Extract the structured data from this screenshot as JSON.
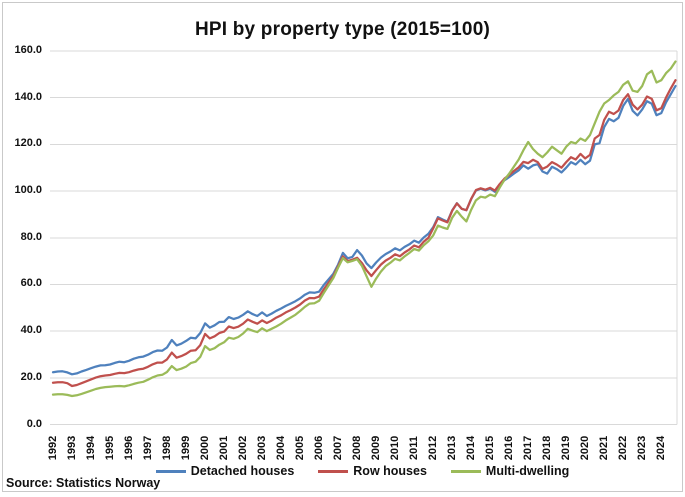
{
  "title": "HPI by property type (2015=100)",
  "source": "Source: Statistics Norway",
  "colors": {
    "detached": "#4F81BD",
    "row": "#C0504D",
    "multi": "#9BBB59",
    "gridline": "#d9d9d9"
  },
  "chart_data": {
    "type": "line",
    "title": "HPI by property type (2015=100)",
    "x_unit": "quarter",
    "x_start": "1992 Q1",
    "x_end": "2024 Q4",
    "x_labels_every": 4,
    "year_labels": [
      "1992",
      "1993",
      "1994",
      "1995",
      "1996",
      "1997",
      "1998",
      "1999",
      "2000",
      "2001",
      "2002",
      "2003",
      "2004",
      "2005",
      "2006",
      "2007",
      "2008",
      "2009",
      "2010",
      "2011",
      "2012",
      "2013",
      "2014",
      "2015",
      "2016",
      "2017",
      "2018",
      "2019",
      "2020",
      "2021",
      "2022",
      "2023",
      "2024"
    ],
    "y_ticks": [
      "0.0",
      "20.0",
      "40.0",
      "60.0",
      "80.0",
      "100.0",
      "120.0",
      "140.0",
      "160.0"
    ],
    "ylim": [
      0,
      160
    ],
    "grid": "horizontal",
    "legend_position": "bottom",
    "series": [
      {
        "name": "Detached houses",
        "color": "#4F81BD",
        "values": [
          22.4,
          22.7,
          22.8,
          22.3,
          21.5,
          21.9,
          22.7,
          23.4,
          24.1,
          24.8,
          25.3,
          25.4,
          25.7,
          26.4,
          26.9,
          26.7,
          27.3,
          28.2,
          28.8,
          29.1,
          29.9,
          31.0,
          31.7,
          31.6,
          33.0,
          36.2,
          33.9,
          34.6,
          35.8,
          37.2,
          36.9,
          39.2,
          43.3,
          41.5,
          42.5,
          43.9,
          44.0,
          46.0,
          45.2,
          45.8,
          47.0,
          48.5,
          47.3,
          46.5,
          48.0,
          46.5,
          47.5,
          48.7,
          49.7,
          50.8,
          51.8,
          52.8,
          54.0,
          55.6,
          56.6,
          56.4,
          56.9,
          59.8,
          62.2,
          64.6,
          68.5,
          73.5,
          71.2,
          71.8,
          74.7,
          72.4,
          69.0,
          67.0,
          69.4,
          71.5,
          73.0,
          74.1,
          75.5,
          74.6,
          76.1,
          77.2,
          78.8,
          77.9,
          80.1,
          81.7,
          84.5,
          88.8,
          87.8,
          86.9,
          91.7,
          94.8,
          92.4,
          91.8,
          96.6,
          100.2,
          101.0,
          100.3,
          101.0,
          99.7,
          102.4,
          104.6,
          106.0,
          107.5,
          108.9,
          111.0,
          109.6,
          111.0,
          111.5,
          108.4,
          107.5,
          110.4,
          109.4,
          108.0,
          110.0,
          112.4,
          111.4,
          113.4,
          111.5,
          113.0,
          120.0,
          120.5,
          127.4,
          130.9,
          129.9,
          131.4,
          136.5,
          139.5,
          134.4,
          132.4,
          135.0,
          138.5,
          137.4,
          132.5,
          133.4,
          138.0,
          141.5,
          145.0
        ]
      },
      {
        "name": "Row houses",
        "color": "#C0504D",
        "values": [
          17.9,
          18.1,
          18.1,
          17.7,
          16.5,
          16.9,
          17.7,
          18.5,
          19.3,
          20.1,
          20.7,
          21.0,
          21.2,
          21.7,
          22.1,
          22.0,
          22.4,
          23.1,
          23.6,
          23.9,
          24.7,
          25.8,
          26.5,
          26.5,
          27.9,
          30.8,
          28.6,
          29.3,
          30.3,
          31.6,
          31.8,
          34.0,
          38.8,
          36.9,
          37.8,
          39.2,
          39.8,
          42.0,
          41.3,
          41.9,
          43.2,
          45.0,
          44.0,
          43.2,
          44.6,
          43.5,
          44.5,
          45.8,
          46.8,
          48.0,
          49.0,
          50.1,
          51.4,
          53.1,
          54.2,
          54.1,
          54.8,
          58.0,
          60.8,
          63.6,
          67.8,
          72.0,
          70.0,
          70.6,
          71.4,
          69.2,
          66.0,
          63.6,
          66.1,
          68.5,
          70.2,
          71.4,
          72.9,
          72.1,
          73.7,
          75.0,
          76.7,
          75.9,
          78.3,
          80.0,
          84.0,
          88.3,
          87.4,
          86.6,
          91.6,
          94.7,
          92.4,
          91.8,
          96.7,
          100.4,
          101.2,
          100.6,
          101.4,
          100.2,
          103.0,
          105.3,
          106.9,
          108.6,
          110.2,
          112.5,
          112.0,
          113.4,
          112.4,
          109.5,
          110.5,
          112.4,
          111.4,
          110.0,
          112.4,
          114.5,
          113.5,
          115.9,
          114.0,
          115.5,
          122.5,
          124.0,
          130.5,
          134.0,
          133.0,
          134.5,
          139.0,
          141.5,
          137.0,
          135.0,
          137.0,
          140.5,
          139.5,
          134.6,
          135.5,
          140.0,
          144.0,
          147.5
        ]
      },
      {
        "name": "Multi-dwelling",
        "color": "#9BBB59",
        "values": [
          12.8,
          13.0,
          13.0,
          12.7,
          12.2,
          12.5,
          13.1,
          13.8,
          14.5,
          15.2,
          15.7,
          16.0,
          16.2,
          16.4,
          16.5,
          16.3,
          16.8,
          17.4,
          17.9,
          18.3,
          19.2,
          20.2,
          21.0,
          21.3,
          22.5,
          25.0,
          23.3,
          23.9,
          24.8,
          26.3,
          26.9,
          29.0,
          33.6,
          31.9,
          32.7,
          34.2,
          35.2,
          37.2,
          36.7,
          37.5,
          39.0,
          41.0,
          40.2,
          39.6,
          41.2,
          40.0,
          41.0,
          42.0,
          43.2,
          44.6,
          45.8,
          47.0,
          48.6,
          50.4,
          51.8,
          51.9,
          53.0,
          56.4,
          59.6,
          62.8,
          67.2,
          71.3,
          69.5,
          70.1,
          70.8,
          68.0,
          63.5,
          59.0,
          62.5,
          65.5,
          67.8,
          69.3,
          71.0,
          70.3,
          72.0,
          73.5,
          75.2,
          74.5,
          76.8,
          78.5,
          81.0,
          85.2,
          84.4,
          83.8,
          88.6,
          91.5,
          89.0,
          87.0,
          92.0,
          96.0,
          97.6,
          97.2,
          98.5,
          97.8,
          101.5,
          104.8,
          107.5,
          110.5,
          113.5,
          117.5,
          121.0,
          118.0,
          116.0,
          114.5,
          116.5,
          119.0,
          117.5,
          116.0,
          119.0,
          121.0,
          120.4,
          122.5,
          121.5,
          124.0,
          129.0,
          134.0,
          137.5,
          139.0,
          141.0,
          142.5,
          145.5,
          147.0,
          143.0,
          142.5,
          145.0,
          150.0,
          151.5,
          146.5,
          147.5,
          150.5,
          152.5,
          155.5
        ]
      }
    ]
  }
}
